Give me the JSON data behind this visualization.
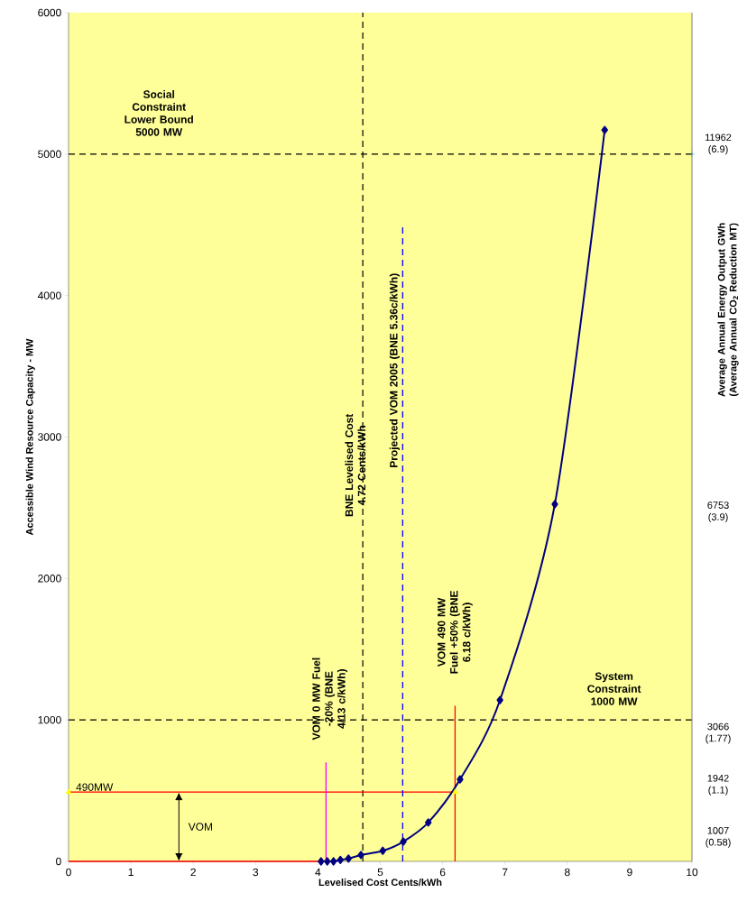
{
  "chart_data": {
    "type": "line",
    "xlabel": "Levelised Cost Cents/kWh",
    "ylabel": "Accessible Wind Resource Capacity - MW",
    "y2label": "Average Annual Energy Output GWh (Average Annual CO$_{2}$ Reduction MT)",
    "xlim": [
      0,
      10
    ],
    "ylim": [
      0,
      6000
    ],
    "xticks": [
      0,
      1,
      2,
      3,
      4,
      5,
      6,
      7,
      8,
      9,
      10
    ],
    "yticks": [
      0,
      1000,
      2000,
      3000,
      4000,
      5000,
      6000
    ],
    "series": [
      {
        "color": "#ff0000",
        "x": [
          0,
          4.05
        ],
        "values": [
          0,
          0
        ],
        "marker": "none",
        "line_style": "solid"
      },
      {
        "color": "#ff0000",
        "x": [
          0,
          6.2
        ],
        "values": [
          490,
          490
        ],
        "marker": "none",
        "line_style": "solid"
      },
      {
        "color": "#ff0000",
        "x": [
          6.2,
          6.2
        ],
        "values": [
          0,
          1100
        ],
        "marker": "none",
        "line_style": "solid"
      },
      {
        "color": "#ff00ff",
        "x": [
          4.13,
          4.13
        ],
        "values": [
          0,
          700
        ],
        "marker": "none",
        "line_style": "solid"
      },
      {
        "color": "#0000ff",
        "x": [
          5.36,
          5.36
        ],
        "values": [
          0,
          4500
        ],
        "marker": "none",
        "line_style": "dashed"
      },
      {
        "color": "#000080",
        "x": [
          4.05,
          4.15,
          4.25,
          4.36,
          4.49,
          4.69,
          5.04,
          5.37,
          5.77,
          6.28,
          6.92,
          7.8,
          8.6
        ],
        "values": [
          0,
          0,
          0,
          10,
          20,
          45,
          75,
          140,
          275,
          580,
          1140,
          2525,
          5170
        ],
        "marker": "diamond",
        "line_style": "solid"
      },
      {
        "type": "scatter",
        "color": "#ffff00",
        "x": [
          0,
          6.2
        ],
        "values": [
          490,
          490
        ],
        "marker": "triangle"
      },
      {
        "type": "scatter",
        "color": "#00a0a0",
        "x": [
          10
        ],
        "values": [
          5000
        ],
        "marker": "cross"
      }
    ],
    "ref_lines": [
      {
        "axis": "x",
        "value": 4.72,
        "label": "BNE Levelised Cost 4.72 Cents/kWh",
        "color": "#000000",
        "line_style": "dashed"
      },
      {
        "axis": "y",
        "value": 5000,
        "label": "Social Constraint Lower Bound 5000 MW",
        "color": "#000000",
        "line_style": "dashed"
      },
      {
        "axis": "y",
        "value": 1000,
        "label": "System Constraint 1000 MW",
        "color": "#000000",
        "line_style": "dashed"
      }
    ],
    "annotations": [
      "VOM 0 MW Fuel -20% (BNE 4/13 c/kWh)",
      "VOM 490 MW Fuel +50% (BNE 6.18 c/kWh)",
      {
        "text": "Projected VOM 2005 (BNE 5.36c/kWh)",
        "x": 5.36
      },
      {
        "text": "490MW",
        "x": 0,
        "y": 490
      },
      {
        "text": "VOM",
        "x": 1.77,
        "y": 490
      },
      "11962 (6.9)",
      "6753 (3.9)",
      "3066 (1.77)",
      "1942 (1.1)",
      "1007 (0.58)"
    ],
    "grid": false
  }
}
